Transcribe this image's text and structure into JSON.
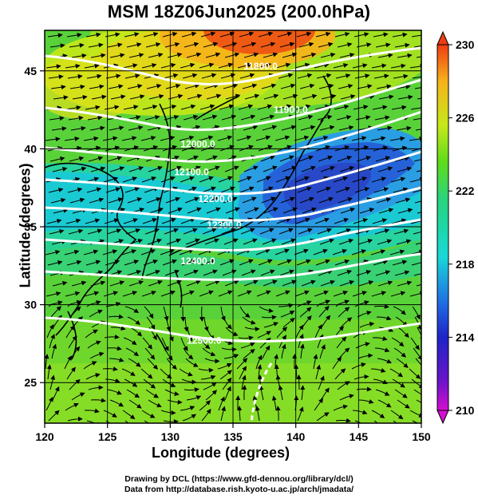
{
  "title": "MSM 18Z06Jun2025 (200.0hPa)",
  "xlabel": "Longitude (degrees)",
  "ylabel": "Latitude  (degrees)",
  "credits": [
    "Drawing by DCL (https://www.gfd-dennou.org/library/dcl/)",
    "Data from http://database.rish.kyoto-u.ac.jp/arch/jmadata/"
  ],
  "chart_data": {
    "type": "heatmap",
    "title": "MSM 18Z06Jun2025 (200.0hPa)",
    "xlabel": "Longitude (degrees)",
    "ylabel": "Latitude  (degrees)",
    "xlim": [
      120,
      150
    ],
    "ylim": [
      22.4,
      47.6
    ],
    "x_ticks": [
      120,
      125,
      130,
      135,
      140,
      145,
      150
    ],
    "y_ticks": [
      25,
      30,
      35,
      40,
      45
    ],
    "colorbar": {
      "min": 210,
      "max": 230,
      "ticks": [
        210,
        214,
        218,
        222,
        226,
        230
      ],
      "extend": "both",
      "colors": [
        "#d40fd0",
        "#1e24c8",
        "#1f72e3",
        "#19d8d8",
        "#2bd37b",
        "#5fdc1a",
        "#c6e81a",
        "#f7b21a",
        "#ee3d12"
      ]
    },
    "contours": [
      {
        "label": "11800.0",
        "lon": 137.2,
        "lat": 45.1
      },
      {
        "label": "11900.0",
        "lon": 139.6,
        "lat": 42.3
      },
      {
        "label": "12000.0",
        "lon": 132.2,
        "lat": 40.1
      },
      {
        "label": "12100.0",
        "lon": 131.7,
        "lat": 38.3
      },
      {
        "label": "12200.0",
        "lon": 133.6,
        "lat": 36.6
      },
      {
        "label": "12300.0",
        "lon": 134.3,
        "lat": 34.9
      },
      {
        "label": "12400.0",
        "lon": 132.2,
        "lat": 32.6
      },
      {
        "label": "12500.0",
        "lon": 132.7,
        "lat": 27.5
      }
    ],
    "wind_vectors": "streamline arrows, predominantly westerly; weaker and rotating south of 30N"
  }
}
